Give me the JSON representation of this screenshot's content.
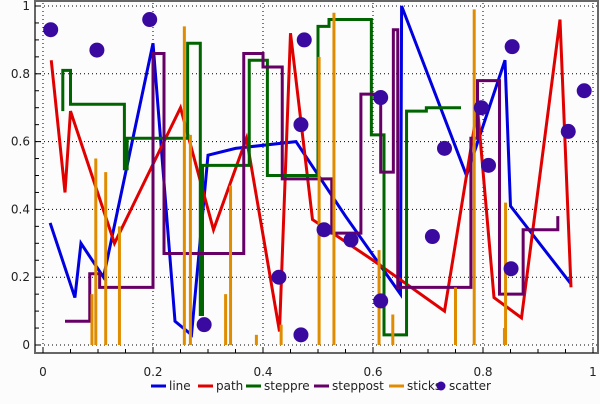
{
  "chart_data": [
    {
      "type": "line",
      "xlim": [
        0,
        1
      ],
      "ylim": [
        0,
        1
      ],
      "grid": true,
      "legend_placement": "bottom",
      "x_ticks": [
        "0",
        "0.2",
        "0.4",
        "0.6",
        "0.8",
        "1"
      ],
      "y_ticks": [
        "0",
        "0.2",
        "0.4",
        "0.6",
        "0.8",
        "1"
      ],
      "series": [
        {
          "name": "line",
          "style": "line",
          "color": "#0000e0",
          "x": [
            0.013,
            0.058,
            0.069,
            0.11,
            0.2,
            0.24,
            0.27,
            0.3,
            0.35,
            0.46,
            0.55,
            0.65,
            0.652,
            0.77,
            0.84,
            0.85,
            0.96
          ],
          "y": [
            0.36,
            0.14,
            0.3,
            0.2,
            0.89,
            0.07,
            0.03,
            0.56,
            0.58,
            0.6,
            0.38,
            0.15,
            1.0,
            0.5,
            0.84,
            0.41,
            0.18
          ]
        },
        {
          "name": "path",
          "style": "line",
          "color": "#e00000",
          "x": [
            0.015,
            0.04,
            0.05,
            0.13,
            0.25,
            0.31,
            0.37,
            0.43,
            0.45,
            0.49,
            0.6,
            0.73,
            0.79,
            0.82,
            0.87,
            0.94,
            0.96
          ],
          "y": [
            0.84,
            0.45,
            0.69,
            0.3,
            0.7,
            0.34,
            0.61,
            0.04,
            0.92,
            0.37,
            0.25,
            0.1,
            0.7,
            0.14,
            0.08,
            0.96,
            0.17
          ]
        },
        {
          "name": "steppre",
          "style": "steppre",
          "color": "#006400",
          "x": [
            0.036,
            0.05,
            0.148,
            0.153,
            0.263,
            0.286,
            0.29,
            0.375,
            0.408,
            0.5,
            0.52,
            0.597,
            0.62,
            0.661,
            0.697,
            0.76
          ],
          "y": [
            0.69,
            0.81,
            0.71,
            0.52,
            0.61,
            0.89,
            0.09,
            0.53,
            0.84,
            0.5,
            0.94,
            0.96,
            0.62,
            0.03,
            0.69,
            0.7
          ]
        },
        {
          "name": "steppost",
          "style": "steppost",
          "color": "#660066",
          "x": [
            0.04,
            0.085,
            0.103,
            0.2,
            0.22,
            0.365,
            0.4,
            0.435,
            0.525,
            0.578,
            0.614,
            0.637,
            0.645,
            0.778,
            0.79,
            0.83,
            0.873,
            0.936
          ],
          "y": [
            0.07,
            0.21,
            0.17,
            0.86,
            0.27,
            0.86,
            0.82,
            0.49,
            0.33,
            0.74,
            0.51,
            0.93,
            0.17,
            0.61,
            0.78,
            0.15,
            0.34,
            0.38
          ]
        },
        {
          "name": "sticks",
          "style": "sticks",
          "color": "#e08c00",
          "x": [
            0.089,
            0.096,
            0.114,
            0.139,
            0.257,
            0.268,
            0.332,
            0.341,
            0.388,
            0.433,
            0.502,
            0.529,
            0.611,
            0.636,
            0.75,
            0.784,
            0.839,
            0.841
          ],
          "y": [
            0.15,
            0.55,
            0.51,
            0.35,
            0.94,
            0.62,
            0.15,
            0.47,
            0.03,
            0.06,
            0.85,
            0.98,
            0.28,
            0.09,
            0.17,
            0.99,
            0.05,
            0.42
          ]
        },
        {
          "name": "scatter",
          "style": "scatter",
          "color": "#3a0aa0",
          "x": [
            0.014,
            0.098,
            0.194,
            0.293,
            0.429,
            0.469,
            0.475,
            0.469,
            0.511,
            0.56,
            0.614,
            0.614,
            0.708,
            0.73,
            0.797,
            0.81,
            0.851,
            0.853,
            0.955,
            0.984
          ],
          "y": [
            0.93,
            0.87,
            0.96,
            0.06,
            0.2,
            0.03,
            0.9,
            0.65,
            0.34,
            0.31,
            0.73,
            0.13,
            0.32,
            0.58,
            0.7,
            0.53,
            0.225,
            0.88,
            0.63,
            0.75
          ]
        }
      ]
    }
  ]
}
